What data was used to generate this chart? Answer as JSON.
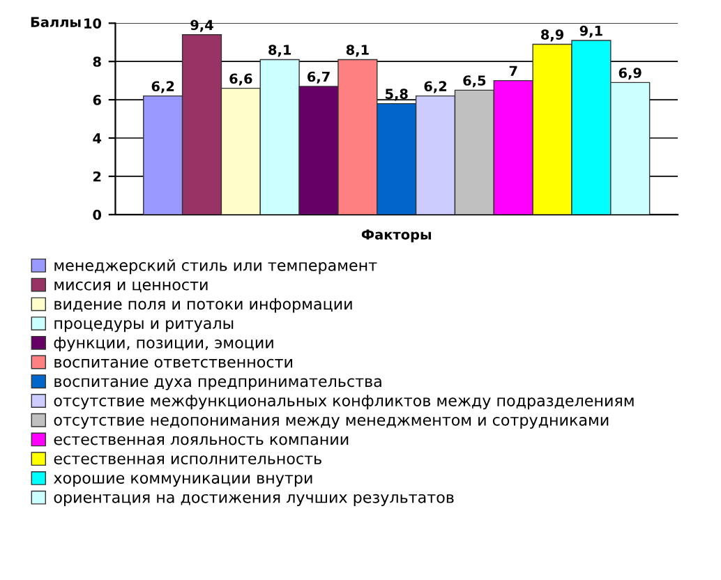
{
  "chart_data": {
    "type": "bar",
    "xlabel": "Факторы",
    "ylabel": "Баллы",
    "categories": [
      null
    ],
    "ylim": [
      0,
      10
    ],
    "yticks": [
      0,
      2,
      4,
      6,
      8,
      10
    ],
    "grid": "y",
    "legend": "bottom",
    "series": [
      {
        "name": "менеджерский стиль или темперамент",
        "color": "#9999ff",
        "values": [
          6.2
        ],
        "value_labels": [
          "6,2"
        ]
      },
      {
        "name": "миссия и ценности",
        "color": "#993366",
        "values": [
          9.4
        ],
        "value_labels": [
          "9,4"
        ]
      },
      {
        "name": "видение поля и потоки информации",
        "color": "#ffffcc",
        "values": [
          6.6
        ],
        "value_labels": [
          "6,6"
        ]
      },
      {
        "name": "процедуры и ритуалы",
        "color": "#ccffff",
        "values": [
          8.1
        ],
        "value_labels": [
          "8,1"
        ]
      },
      {
        "name": "функции, позиции, эмоции",
        "color": "#660066",
        "values": [
          6.7
        ],
        "value_labels": [
          "6,7"
        ]
      },
      {
        "name": "воспитание ответственности",
        "color": "#ff8080",
        "values": [
          8.1
        ],
        "value_labels": [
          "8,1"
        ]
      },
      {
        "name": "воспитание духа предпринимательства",
        "color": "#0066cc",
        "values": [
          5.8
        ],
        "value_labels": [
          "5,8"
        ]
      },
      {
        "name": "отсутствие межфункциональных конфликтов между подразделениям",
        "color": "#ccccff",
        "values": [
          6.2
        ],
        "value_labels": [
          "6,2"
        ]
      },
      {
        "name": "отсутствие недопонимания между менеджментом и сотрудниками",
        "color": "#c0c0c0",
        "values": [
          6.5
        ],
        "value_labels": [
          "6,5"
        ]
      },
      {
        "name": "естественная лояльность компании",
        "color": "#ff00ff",
        "values": [
          7
        ],
        "value_labels": [
          "7"
        ]
      },
      {
        "name": "естественная исполнительность",
        "color": "#ffff00",
        "values": [
          8.9
        ],
        "value_labels": [
          "8,9"
        ]
      },
      {
        "name": "хорошие коммуникации внутри",
        "color": "#00ffff",
        "values": [
          9.1
        ],
        "value_labels": [
          "9,1"
        ]
      },
      {
        "name": "ориентация на достижения лучших результатов",
        "color": "#ccffff",
        "values": [
          6.9
        ],
        "value_labels": [
          "6,9"
        ]
      }
    ]
  }
}
